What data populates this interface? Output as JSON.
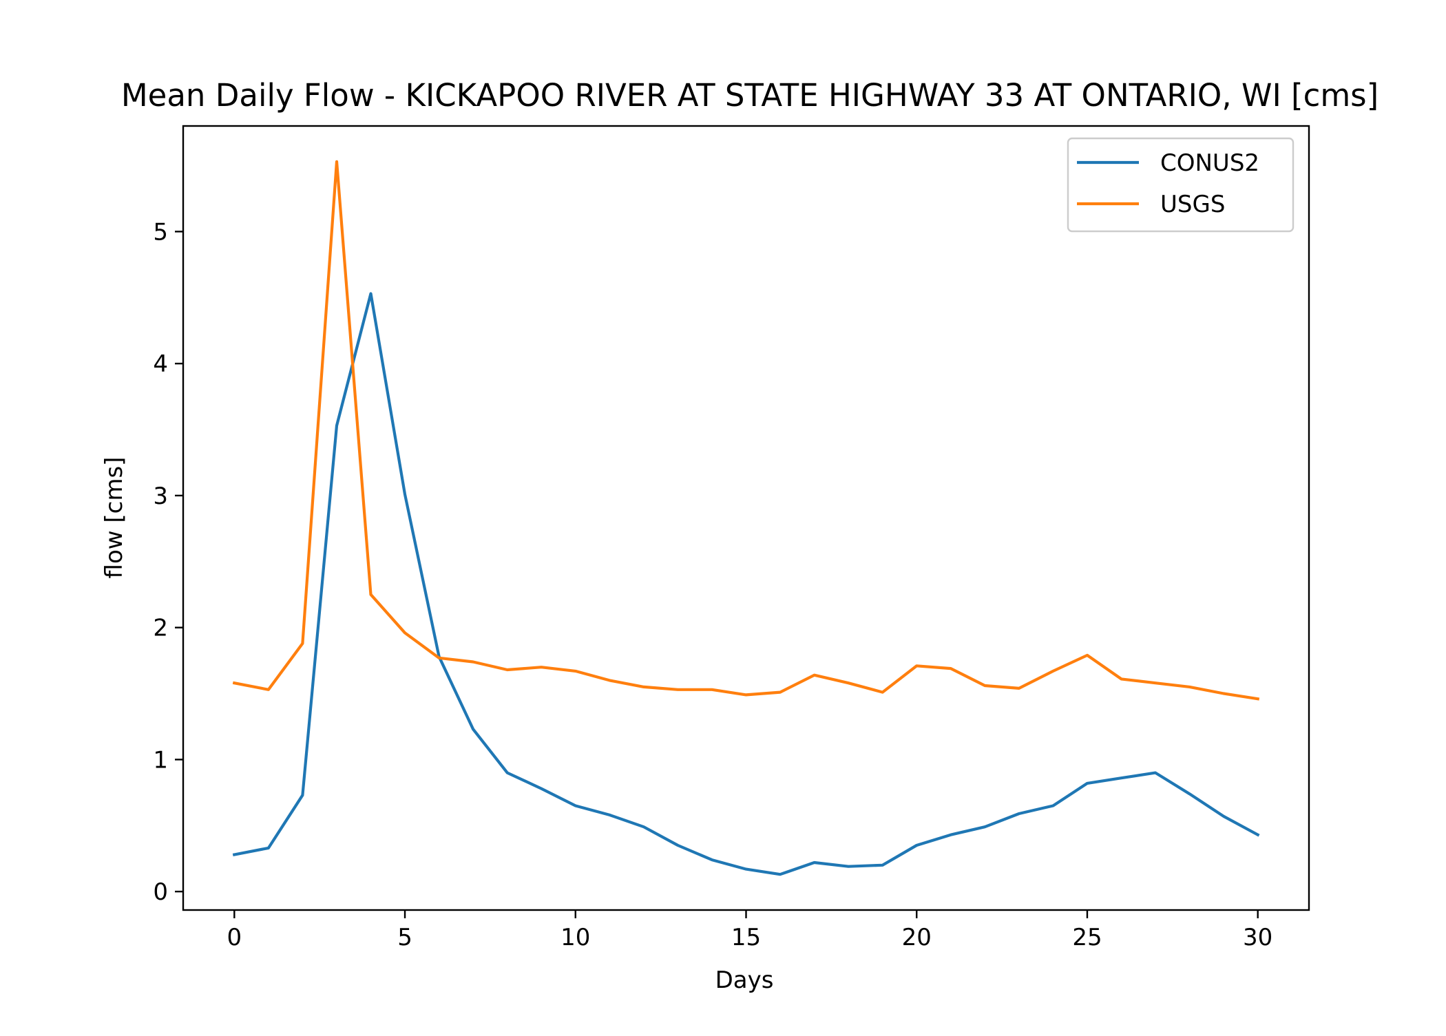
{
  "chart_data": {
    "type": "line",
    "title": "Mean Daily Flow - KICKAPOO RIVER AT STATE HIGHWAY 33 AT ONTARIO, WI [cms]",
    "xlabel": "Days",
    "ylabel": "flow [cms]",
    "xlim": [
      -1.5,
      31.5
    ],
    "ylim": [
      -0.14,
      5.8
    ],
    "xticks": [
      0,
      5,
      10,
      15,
      20,
      25,
      30
    ],
    "yticks": [
      0,
      1,
      2,
      3,
      4,
      5
    ],
    "grid": false,
    "legend_position": "top-right",
    "x": [
      0,
      1,
      2,
      3,
      4,
      5,
      6,
      7,
      8,
      9,
      10,
      11,
      12,
      13,
      14,
      15,
      16,
      17,
      18,
      19,
      20,
      21,
      22,
      23,
      24,
      25,
      26,
      27,
      28,
      29,
      30
    ],
    "series": [
      {
        "name": "CONUS2",
        "color": "#1f77b4",
        "values": [
          0.28,
          0.33,
          0.73,
          3.53,
          4.53,
          3.01,
          1.78,
          1.23,
          0.9,
          0.78,
          0.65,
          0.58,
          0.49,
          0.35,
          0.24,
          0.17,
          0.13,
          0.22,
          0.19,
          0.2,
          0.35,
          0.43,
          0.49,
          0.59,
          0.65,
          0.82,
          0.86,
          0.9,
          0.74,
          0.57,
          0.43
        ]
      },
      {
        "name": "USGS",
        "color": "#ff7f0e",
        "values": [
          1.58,
          1.53,
          1.88,
          5.53,
          2.25,
          1.96,
          1.77,
          1.74,
          1.68,
          1.7,
          1.67,
          1.6,
          1.55,
          1.53,
          1.53,
          1.49,
          1.51,
          1.64,
          1.58,
          1.51,
          1.71,
          1.69,
          1.56,
          1.54,
          1.67,
          1.79,
          1.61,
          1.58,
          1.55,
          1.5,
          1.46
        ]
      }
    ]
  }
}
